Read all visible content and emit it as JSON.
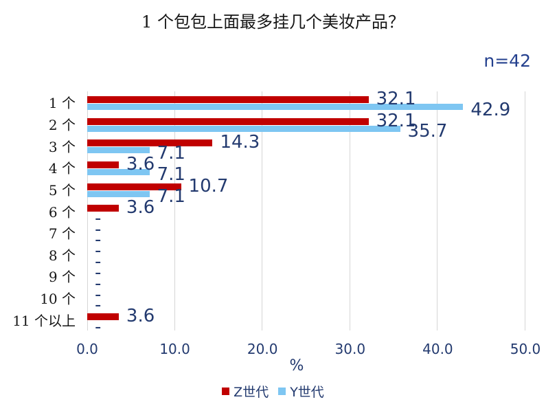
{
  "chart_data": {
    "type": "bar",
    "orientation": "horizontal",
    "title": "1 个包包上面最多挂几个美妆产品？",
    "annotation": "n=42",
    "categories": [
      "1 个",
      "2 个",
      "3 个",
      "4 个",
      "5 个",
      "6 个",
      "7 个",
      "8 个",
      "9 个",
      "10 个",
      "11 个以上"
    ],
    "series": [
      {
        "name": "Z世代",
        "color": "#C00000",
        "values": [
          32.1,
          32.1,
          14.3,
          3.6,
          10.7,
          3.6,
          0,
          0,
          0,
          0,
          3.6
        ],
        "labels": [
          "32.1",
          "32.1",
          "14.3",
          "3.6",
          "10.7",
          "3.6",
          "-",
          "-",
          "-",
          "-",
          "3.6"
        ]
      },
      {
        "name": "Y世代",
        "color": "#7EC6F2",
        "values": [
          42.9,
          35.7,
          7.1,
          7.1,
          7.1,
          0,
          0,
          0,
          0,
          0,
          0
        ],
        "labels": [
          "42.9",
          "35.7",
          "7.1",
          "7.1",
          "7.1",
          "-",
          "-",
          "-",
          "-",
          "-",
          "-"
        ]
      }
    ],
    "xlabel": "%",
    "xlim": [
      0,
      50
    ],
    "x_ticks": [
      "0.0",
      "10.0",
      "20.0",
      "30.0",
      "40.0",
      "50.0"
    ],
    "grid": true,
    "legend_position": "bottom"
  },
  "colors": {
    "label_text": "#233A6F",
    "gridline": "#D5D5D5",
    "category_text": "#151515",
    "background": "#FFFFFF"
  }
}
